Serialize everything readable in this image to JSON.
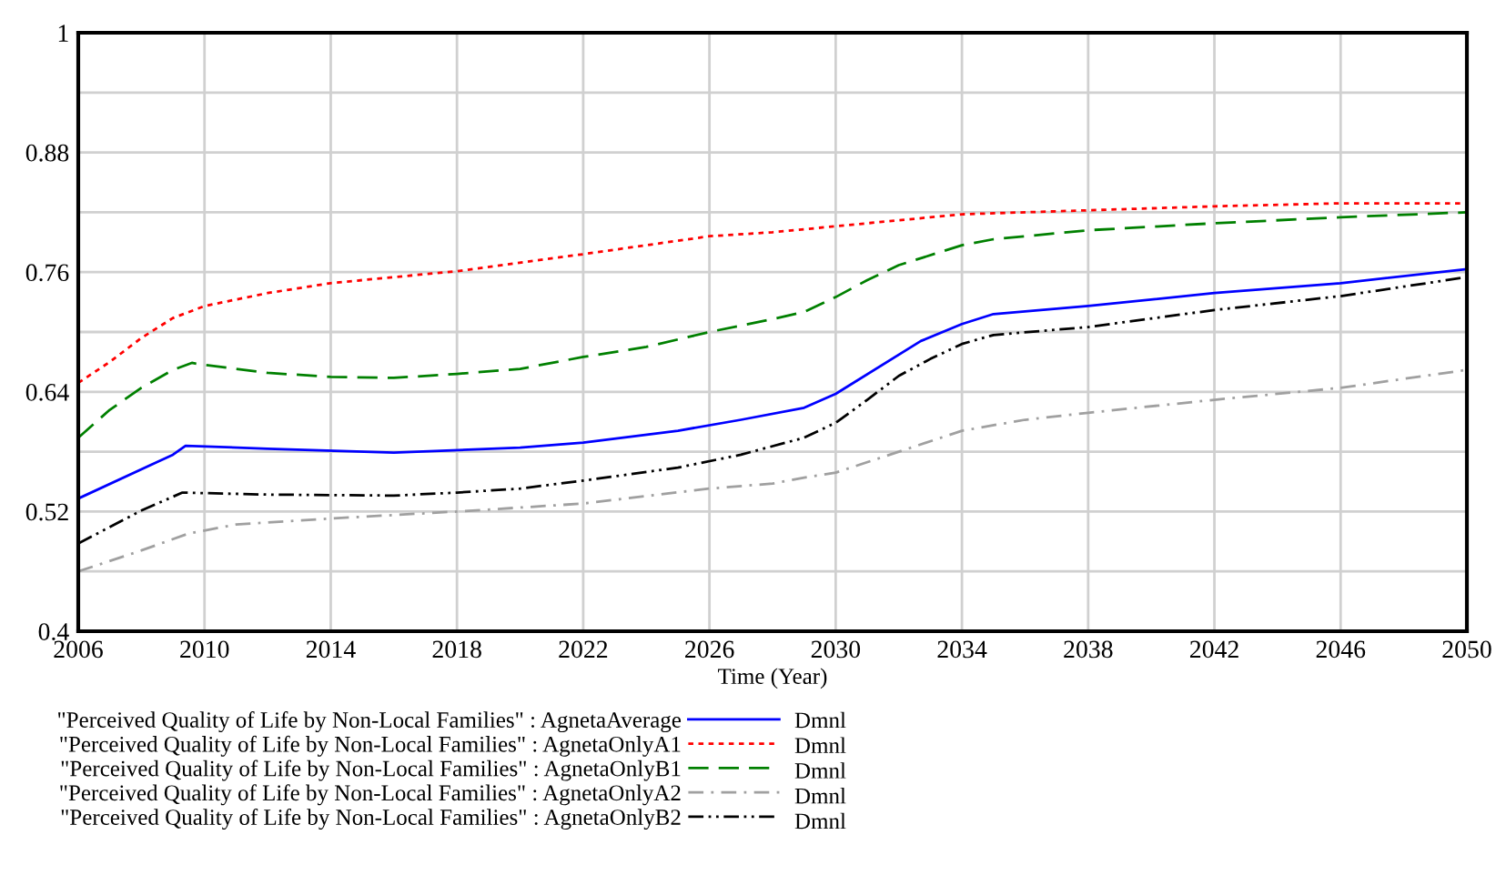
{
  "chart_data": {
    "type": "line",
    "xlabel": "Time (Year)",
    "xlim": [
      2006,
      2050
    ],
    "xticks": [
      2006,
      2010,
      2014,
      2018,
      2022,
      2026,
      2030,
      2034,
      2038,
      2042,
      2046,
      2050
    ],
    "ylim": [
      0.4,
      1
    ],
    "yticks": [
      0.4,
      {
        "value": 0.46,
        "label": null
      },
      0.52,
      {
        "value": 0.58,
        "label": null
      },
      0.64,
      {
        "value": 0.7,
        "label": null
      },
      0.76,
      {
        "value": 0.82,
        "label": null
      },
      0.88,
      {
        "value": 0.94,
        "label": null
      },
      1
    ],
    "grid": true,
    "legend": "bottom",
    "annotations": [
      "Dmnl",
      "Dmnl",
      "Dmnl",
      "Dmnl",
      "Dmnl"
    ],
    "series": [
      {
        "name": "\"Perceived Quality of Life by Non-Local Families\" : AgnetaAverage",
        "color": "#0000ff",
        "line_style": "solid",
        "x": [
          2006,
          2009,
          2009.4,
          2012,
          2016,
          2020,
          2022,
          2025,
          2027,
          2029,
          2030,
          2032.7,
          2034,
          2035,
          2038,
          2042,
          2046,
          2050
        ],
        "values": [
          0.533,
          0.577,
          0.586,
          0.583,
          0.579,
          0.584,
          0.589,
          0.601,
          0.612,
          0.624,
          0.638,
          0.691,
          0.708,
          0.718,
          0.726,
          0.739,
          0.749,
          0.763
        ]
      },
      {
        "name": "\"Perceived Quality of Life by Non-Local Families\" : AgnetaOnlyA1",
        "color": "#ff0000",
        "line_style": "dotted",
        "x": [
          2006,
          2007,
          2008,
          2009,
          2010,
          2012,
          2014,
          2018,
          2022,
          2026,
          2028,
          2030,
          2033,
          2034,
          2038,
          2042,
          2046,
          2050
        ],
        "values": [
          0.649,
          0.67,
          0.694,
          0.714,
          0.726,
          0.739,
          0.749,
          0.761,
          0.778,
          0.796,
          0.8,
          0.806,
          0.815,
          0.818,
          0.822,
          0.826,
          0.829,
          0.829
        ]
      },
      {
        "name": "\"Perceived Quality of Life by Non-Local Families\" : AgnetaOnlyB1",
        "color": "#008000",
        "line_style": "dashed",
        "x": [
          2006,
          2007,
          2008,
          2009,
          2009.6,
          2010,
          2012,
          2014,
          2016,
          2018,
          2020,
          2022,
          2024,
          2026,
          2028,
          2029,
          2030,
          2031,
          2032,
          2034,
          2035,
          2038,
          2042,
          2046,
          2050
        ],
        "values": [
          0.594,
          0.622,
          0.644,
          0.662,
          0.669,
          0.667,
          0.659,
          0.655,
          0.654,
          0.658,
          0.663,
          0.675,
          0.685,
          0.7,
          0.713,
          0.72,
          0.735,
          0.752,
          0.767,
          0.787,
          0.793,
          0.802,
          0.809,
          0.815,
          0.82
        ]
      },
      {
        "name": "\"Perceived Quality of Life by Non-Local Families\" : AgnetaOnlyA2",
        "color": "#a0a0a0",
        "line_style": "dashdot",
        "x": [
          2006,
          2008,
          2009.5,
          2011,
          2014,
          2018,
          2022,
          2026,
          2028,
          2029,
          2030,
          2032,
          2034,
          2036,
          2038,
          2042,
          2046,
          2050
        ],
        "values": [
          0.46,
          0.481,
          0.498,
          0.507,
          0.513,
          0.52,
          0.528,
          0.543,
          0.548,
          0.554,
          0.559,
          0.58,
          0.601,
          0.612,
          0.619,
          0.632,
          0.644,
          0.662
        ]
      },
      {
        "name": "\"Perceived Quality of Life by Non-Local Families\" : AgnetaOnlyB2",
        "color": "#000000",
        "line_style": "dashdotdot",
        "x": [
          2006,
          2008,
          2009.3,
          2012,
          2016,
          2018,
          2020,
          2022,
          2025,
          2027,
          2029,
          2030,
          2031,
          2032,
          2033,
          2034,
          2035,
          2038,
          2042,
          2046,
          2050
        ],
        "values": [
          0.488,
          0.521,
          0.539,
          0.537,
          0.536,
          0.539,
          0.543,
          0.551,
          0.564,
          0.577,
          0.594,
          0.609,
          0.632,
          0.656,
          0.673,
          0.688,
          0.697,
          0.705,
          0.722,
          0.736,
          0.755
        ]
      }
    ]
  }
}
